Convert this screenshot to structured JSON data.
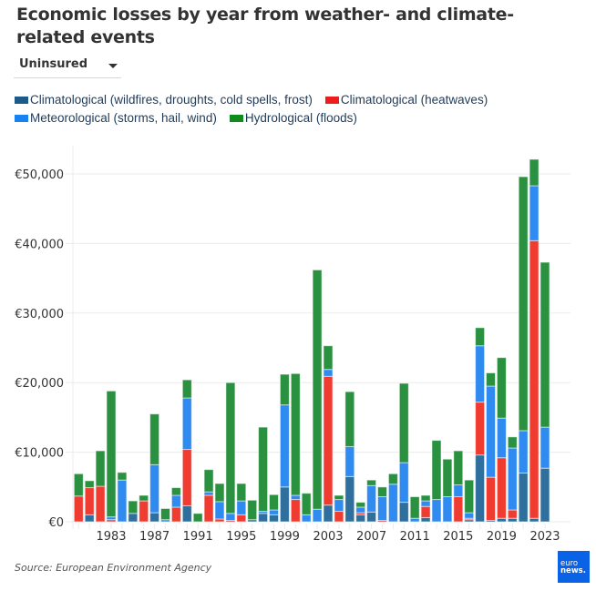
{
  "title": "Economic losses by year from weather- and climate-related events",
  "dropdown": {
    "selected": "Uninsured"
  },
  "source": "Source: European Environment Agency",
  "logo": {
    "line1": "euro",
    "line2": "news."
  },
  "colors": {
    "climatological": "#2e6f9e",
    "heatwaves": "#f03b30",
    "meteorological": "#2f8bf0",
    "hydrological": "#2a9140"
  },
  "chart_data": {
    "type": "bar",
    "stacked": true,
    "title": "Economic losses by year from weather- and climate-related events",
    "xlabel": "",
    "ylabel": "",
    "unit": "EUR (millions)",
    "ylim": [
      0,
      52000
    ],
    "yticks": [
      0,
      10000,
      20000,
      30000,
      40000,
      50000
    ],
    "ytick_labels": [
      "€0",
      "€10,000",
      "€20,000",
      "€30,000",
      "€40,000",
      "€50,000"
    ],
    "xtick_labels": [
      "1983",
      "1987",
      "1991",
      "1995",
      "1999",
      "2003",
      "2007",
      "2011",
      "2015",
      "2019",
      "2023"
    ],
    "grid": true,
    "legend_position": "top",
    "categories": [
      1980,
      1981,
      1982,
      1983,
      1984,
      1985,
      1986,
      1987,
      1988,
      1989,
      1990,
      1991,
      1992,
      1993,
      1994,
      1995,
      1996,
      1997,
      1998,
      1999,
      2000,
      2001,
      2002,
      2003,
      2004,
      2005,
      2006,
      2007,
      2008,
      2009,
      2010,
      2011,
      2012,
      2013,
      2014,
      2015,
      2016,
      2017,
      2018,
      2019,
      2020,
      2021,
      2022,
      2023
    ],
    "series": [
      {
        "name": "Climatological (wildfires, droughts, cold spells, frost)",
        "key": "climatological",
        "values": [
          0,
          1000,
          0,
          0,
          0,
          1200,
          0,
          1300,
          0,
          0,
          2300,
          0,
          0,
          0,
          0,
          0,
          300,
          1200,
          1000,
          5000,
          0,
          0,
          0,
          2400,
          0,
          6500,
          1000,
          1400,
          0,
          0,
          2800,
          0,
          600,
          0,
          0,
          0,
          300,
          9600,
          200,
          500,
          500,
          7000,
          500,
          7700
        ]
      },
      {
        "name": "Climatological (heatwaves)",
        "key": "heatwaves",
        "values": [
          3700,
          3900,
          5100,
          300,
          0,
          0,
          3000,
          0,
          0,
          2100,
          8100,
          0,
          3800,
          400,
          200,
          1000,
          0,
          0,
          0,
          0,
          3200,
          0,
          0,
          18500,
          1500,
          0,
          300,
          0,
          200,
          0,
          0,
          0,
          1600,
          0,
          0,
          3600,
          200,
          7600,
          6200,
          8700,
          1200,
          0,
          39900,
          0
        ]
      },
      {
        "name": "Meteorological (storms, hail, wind)",
        "key": "meteorological",
        "values": [
          0,
          0,
          0,
          400,
          6000,
          0,
          0,
          6900,
          300,
          1700,
          7400,
          0,
          500,
          2500,
          1000,
          2000,
          0,
          300,
          700,
          11800,
          600,
          1000,
          1800,
          1000,
          1700,
          4300,
          800,
          3800,
          3400,
          5400,
          5700,
          500,
          800,
          3200,
          3600,
          1700,
          800,
          8100,
          13100,
          5700,
          8900,
          6100,
          7900,
          5900
        ]
      },
      {
        "name": "Hydrological (floods)",
        "key": "hydrological",
        "values": [
          3200,
          1000,
          5100,
          18100,
          1100,
          1800,
          800,
          7300,
          1600,
          1100,
          2600,
          1200,
          3200,
          2600,
          18800,
          2500,
          2800,
          12100,
          2200,
          4400,
          17500,
          3100,
          34400,
          3400,
          600,
          7900,
          700,
          800,
          1400,
          1500,
          11400,
          3100,
          800,
          8500,
          5400,
          4900,
          4700,
          2600,
          1900,
          8700,
          1600,
          36500,
          3800,
          23700
        ]
      }
    ]
  }
}
